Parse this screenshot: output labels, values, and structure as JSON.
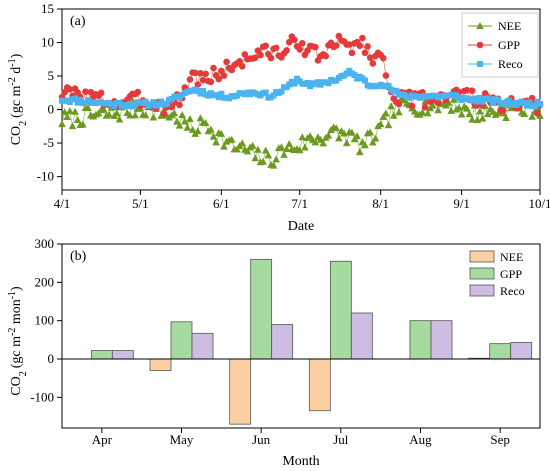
{
  "chart_data": [
    {
      "type": "line",
      "panel_label": "(a)",
      "xlabel": "Date",
      "ylabel_base": "CO",
      "ylabel_sub": "2",
      "ylabel_unit_prefix": "(gc m",
      "ylabel_sup1": "-2",
      "ylabel_unit_mid": " d",
      "ylabel_sup2": "-1",
      "ylabel_unit_suffix": ")",
      "x_ticks": [
        "4/1",
        "5/1",
        "6/1",
        "7/1",
        "8/1",
        "9/1",
        "10/1"
      ],
      "x_tick_days": [
        0,
        30,
        61,
        91,
        122,
        153,
        183
      ],
      "xlim": [
        0,
        183
      ],
      "y_ticks": [
        -10,
        -5,
        0,
        5,
        10,
        15
      ],
      "ylim": [
        -12,
        15
      ],
      "legend_position": "top-right",
      "x_unit": "days since 4/1",
      "series": [
        {
          "name": "NEE",
          "color": "#6b9b1e",
          "marker": "triangle",
          "knots": [
            [
              0,
              -1.5
            ],
            [
              10,
              -1
            ],
            [
              20,
              -0.6
            ],
            [
              30,
              0.3
            ],
            [
              40,
              -0.5
            ],
            [
              45,
              -1.5
            ],
            [
              50,
              -3
            ],
            [
              55,
              -2
            ],
            [
              60,
              -4
            ],
            [
              65,
              -5.5
            ],
            [
              70,
              -6
            ],
            [
              75,
              -7
            ],
            [
              80,
              -7.5
            ],
            [
              85,
              -6
            ],
            [
              90,
              -5.5
            ],
            [
              95,
              -4.5
            ],
            [
              100,
              -4
            ],
            [
              105,
              -3.5
            ],
            [
              110,
              -4
            ],
            [
              115,
              -5.5
            ],
            [
              118,
              -4.5
            ],
            [
              122,
              -3
            ],
            [
              126,
              -0.5
            ],
            [
              130,
              0.5
            ],
            [
              140,
              0.5
            ],
            [
              150,
              1
            ],
            [
              155,
              -0.5
            ],
            [
              160,
              -0.5
            ],
            [
              170,
              0
            ],
            [
              183,
              0.2
            ]
          ],
          "noise": 1.3,
          "seed": 7
        },
        {
          "name": "GPP",
          "color": "#e33b3b",
          "marker": "circle",
          "knots": [
            [
              0,
              2.5
            ],
            [
              10,
              2
            ],
            [
              20,
              1
            ],
            [
              30,
              1.5
            ],
            [
              40,
              0.5
            ],
            [
              45,
              1.5
            ],
            [
              50,
              5
            ],
            [
              55,
              4.5
            ],
            [
              60,
              5.5
            ],
            [
              65,
              6.5
            ],
            [
              70,
              7.5
            ],
            [
              75,
              8.5
            ],
            [
              80,
              8.5
            ],
            [
              85,
              8.5
            ],
            [
              90,
              10.5
            ],
            [
              95,
              8.5
            ],
            [
              100,
              8
            ],
            [
              105,
              10
            ],
            [
              110,
              9.5
            ],
            [
              115,
              10
            ],
            [
              118,
              8
            ],
            [
              122,
              8
            ],
            [
              126,
              3
            ],
            [
              130,
              1.5
            ],
            [
              140,
              1.5
            ],
            [
              150,
              2.5
            ],
            [
              155,
              2
            ],
            [
              160,
              1.5
            ],
            [
              170,
              0.5
            ],
            [
              183,
              0.5
            ]
          ],
          "noise": 1.2,
          "seed": 3
        },
        {
          "name": "Reco",
          "color": "#4bb3f0",
          "marker": "square",
          "knots": [
            [
              0,
              1.5
            ],
            [
              10,
              1.2
            ],
            [
              20,
              0.8
            ],
            [
              30,
              0.8
            ],
            [
              40,
              1
            ],
            [
              45,
              2
            ],
            [
              50,
              3
            ],
            [
              55,
              2.5
            ],
            [
              60,
              2
            ],
            [
              65,
              2
            ],
            [
              70,
              2.5
            ],
            [
              75,
              2.5
            ],
            [
              80,
              2
            ],
            [
              85,
              3
            ],
            [
              90,
              4.5
            ],
            [
              95,
              3.5
            ],
            [
              100,
              4
            ],
            [
              105,
              4.5
            ],
            [
              110,
              5.5
            ],
            [
              115,
              4.5
            ],
            [
              118,
              3.5
            ],
            [
              122,
              4
            ],
            [
              126,
              3
            ],
            [
              130,
              2
            ],
            [
              140,
              2
            ],
            [
              150,
              2
            ],
            [
              155,
              1.5
            ],
            [
              160,
              1.5
            ],
            [
              170,
              1
            ],
            [
              183,
              0.8
            ]
          ],
          "noise": 0.35,
          "seed": 11
        }
      ]
    },
    {
      "type": "bar",
      "panel_label": "(b)",
      "xlabel": "Month",
      "ylabel_base": "CO",
      "ylabel_sub": "2",
      "ylabel_unit_prefix": "(gc m",
      "ylabel_sup1": "-2",
      "ylabel_unit_mid": " mon",
      "ylabel_sup2": "-1",
      "ylabel_unit_suffix": ")",
      "categories": [
        "Apr",
        "May",
        "Jun",
        "Jul",
        "Aug",
        "Sep"
      ],
      "y_ticks": [
        -100,
        0,
        100,
        200,
        300
      ],
      "ylim": [
        -180,
        300
      ],
      "legend_position": "top-right",
      "series": [
        {
          "name": "NEE",
          "color": "#fdd0a2",
          "values": [
            0,
            -30,
            -170,
            -135,
            0,
            2
          ]
        },
        {
          "name": "GPP",
          "color": "#a6dba0",
          "values": [
            22,
            97,
            260,
            255,
            100,
            40
          ]
        },
        {
          "name": "Reco",
          "color": "#cdbde3",
          "values": [
            22,
            67,
            90,
            120,
            100,
            43
          ]
        }
      ]
    }
  ]
}
